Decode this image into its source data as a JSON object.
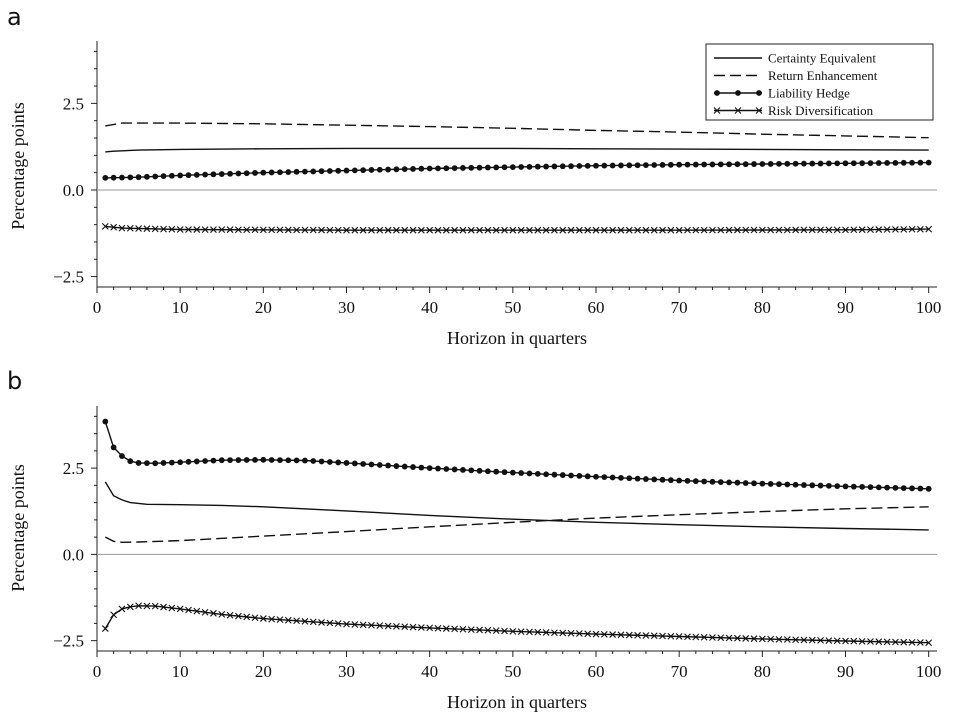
{
  "chart_data": [
    {
      "panel": "a",
      "type": "line",
      "xlabel": "Horizon in quarters",
      "ylabel": "Percentage points",
      "xlim": [
        0,
        101
      ],
      "ylim": [
        -2.8,
        4.3
      ],
      "xticks": [
        0,
        10,
        20,
        30,
        40,
        50,
        60,
        70,
        80,
        90,
        100
      ],
      "yticks": [
        -2.5,
        0.0,
        2.5
      ],
      "ytick_labels": [
        "−2.5",
        "0.0",
        "2.5"
      ],
      "legend_position": "top-right",
      "series": [
        {
          "name": "Certainty Equivalent",
          "style": "solid",
          "marker": "none",
          "points": [
            [
              1,
              1.1
            ],
            [
              2,
              1.12
            ],
            [
              5,
              1.15
            ],
            [
              10,
              1.17
            ],
            [
              20,
              1.19
            ],
            [
              30,
              1.2
            ],
            [
              40,
              1.2
            ],
            [
              50,
              1.2
            ],
            [
              60,
              1.19
            ],
            [
              70,
              1.18
            ],
            [
              80,
              1.17
            ],
            [
              90,
              1.16
            ],
            [
              100,
              1.15
            ]
          ]
        },
        {
          "name": "Return Enhancement",
          "style": "dashed",
          "marker": "none",
          "points": [
            [
              1,
              1.85
            ],
            [
              3,
              1.93
            ],
            [
              5,
              1.93
            ],
            [
              10,
              1.93
            ],
            [
              20,
              1.91
            ],
            [
              30,
              1.87
            ],
            [
              40,
              1.83
            ],
            [
              50,
              1.78
            ],
            [
              60,
              1.72
            ],
            [
              70,
              1.67
            ],
            [
              80,
              1.61
            ],
            [
              90,
              1.56
            ],
            [
              100,
              1.51
            ]
          ]
        },
        {
          "name": "Liability Hedge",
          "style": "solid",
          "marker": "dot",
          "points": [
            [
              1,
              0.35
            ],
            [
              5,
              0.37
            ],
            [
              10,
              0.42
            ],
            [
              20,
              0.5
            ],
            [
              30,
              0.56
            ],
            [
              40,
              0.62
            ],
            [
              50,
              0.66
            ],
            [
              60,
              0.7
            ],
            [
              70,
              0.73
            ],
            [
              80,
              0.75
            ],
            [
              90,
              0.77
            ],
            [
              100,
              0.79
            ]
          ]
        },
        {
          "name": "Risk Diversification",
          "style": "solid",
          "marker": "cross",
          "points": [
            [
              1,
              -1.05
            ],
            [
              3,
              -1.1
            ],
            [
              10,
              -1.14
            ],
            [
              30,
              -1.16
            ],
            [
              50,
              -1.16
            ],
            [
              70,
              -1.16
            ],
            [
              90,
              -1.15
            ],
            [
              100,
              -1.13
            ]
          ]
        }
      ]
    },
    {
      "panel": "b",
      "type": "line",
      "xlabel": "Horizon in quarters",
      "ylabel": "Percentage points",
      "xlim": [
        0,
        101
      ],
      "ylim": [
        -2.8,
        4.3
      ],
      "xticks": [
        0,
        10,
        20,
        30,
        40,
        50,
        60,
        70,
        80,
        90,
        100
      ],
      "yticks": [
        -2.5,
        0.0,
        2.5
      ],
      "ytick_labels": [
        "−2.5",
        "0.0",
        "2.5"
      ],
      "series": [
        {
          "name": "Certainty Equivalent",
          "style": "solid",
          "marker": "none",
          "points": [
            [
              1,
              2.1
            ],
            [
              2,
              1.7
            ],
            [
              3,
              1.58
            ],
            [
              4,
              1.5
            ],
            [
              6,
              1.45
            ],
            [
              10,
              1.44
            ],
            [
              15,
              1.42
            ],
            [
              20,
              1.38
            ],
            [
              30,
              1.26
            ],
            [
              40,
              1.13
            ],
            [
              50,
              1.02
            ],
            [
              60,
              0.93
            ],
            [
              70,
              0.86
            ],
            [
              80,
              0.8
            ],
            [
              90,
              0.75
            ],
            [
              100,
              0.71
            ]
          ]
        },
        {
          "name": "Return Enhancement",
          "style": "dashed",
          "marker": "none",
          "points": [
            [
              1,
              0.5
            ],
            [
              2,
              0.38
            ],
            [
              3,
              0.35
            ],
            [
              5,
              0.36
            ],
            [
              10,
              0.4
            ],
            [
              20,
              0.53
            ],
            [
              30,
              0.66
            ],
            [
              40,
              0.8
            ],
            [
              50,
              0.93
            ],
            [
              60,
              1.05
            ],
            [
              70,
              1.15
            ],
            [
              80,
              1.24
            ],
            [
              90,
              1.32
            ],
            [
              100,
              1.38
            ]
          ]
        },
        {
          "name": "Liability Hedge",
          "style": "solid",
          "marker": "dot",
          "points": [
            [
              1,
              3.85
            ],
            [
              2,
              3.1
            ],
            [
              3,
              2.85
            ],
            [
              4,
              2.7
            ],
            [
              5,
              2.65
            ],
            [
              7,
              2.64
            ],
            [
              10,
              2.67
            ],
            [
              15,
              2.73
            ],
            [
              20,
              2.74
            ],
            [
              25,
              2.72
            ],
            [
              30,
              2.65
            ],
            [
              40,
              2.5
            ],
            [
              50,
              2.37
            ],
            [
              60,
              2.25
            ],
            [
              70,
              2.14
            ],
            [
              80,
              2.05
            ],
            [
              90,
              1.97
            ],
            [
              100,
              1.9
            ]
          ]
        },
        {
          "name": "Risk Diversification",
          "style": "solid",
          "marker": "cross",
          "points": [
            [
              1,
              -2.15
            ],
            [
              2,
              -1.75
            ],
            [
              3,
              -1.58
            ],
            [
              4,
              -1.52
            ],
            [
              5,
              -1.49
            ],
            [
              7,
              -1.5
            ],
            [
              10,
              -1.58
            ],
            [
              15,
              -1.74
            ],
            [
              20,
              -1.86
            ],
            [
              30,
              -2.02
            ],
            [
              40,
              -2.13
            ],
            [
              50,
              -2.23
            ],
            [
              60,
              -2.31
            ],
            [
              70,
              -2.38
            ],
            [
              80,
              -2.45
            ],
            [
              90,
              -2.51
            ],
            [
              100,
              -2.56
            ]
          ]
        }
      ]
    }
  ]
}
